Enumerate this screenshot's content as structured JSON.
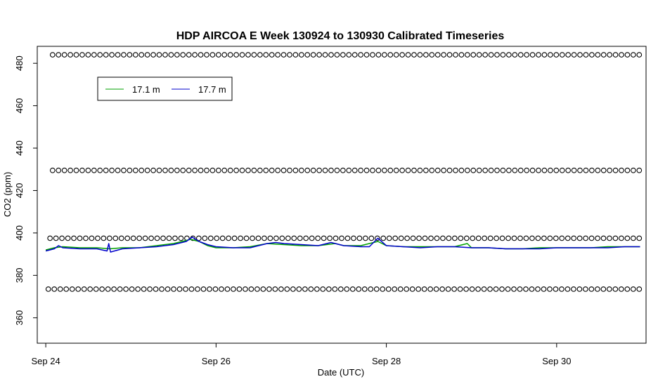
{
  "chart_data": {
    "type": "line",
    "title": "HDP AIRCOA E  Week 130924 to 130930  Calibrated Timeseries",
    "xlabel": "Date (UTC)",
    "ylabel": "CO2 (ppm)",
    "x_ticks": [
      "Sep 24",
      "Sep 26",
      "Sep 28",
      "Sep 30"
    ],
    "x_tick_values": [
      0,
      2,
      4,
      6
    ],
    "xlim": [
      -0.1,
      7.05
    ],
    "y_ticks": [
      "360",
      "380",
      "400",
      "420",
      "440",
      "460",
      "480"
    ],
    "y_tick_values": [
      360,
      380,
      400,
      420,
      440,
      460,
      480
    ],
    "ylim": [
      348,
      488
    ],
    "grid": false,
    "legend_position": "top-left",
    "colors": {
      "series_17_1": "#00a000",
      "series_17_7": "#0000cc",
      "points": "#000000"
    },
    "series": [
      {
        "name": "17.1 m",
        "x": [
          0.0,
          0.1,
          0.2,
          0.4,
          0.6,
          0.75,
          0.9,
          1.1,
          1.3,
          1.5,
          1.7,
          1.8,
          1.9,
          2.0,
          2.2,
          2.4,
          2.6,
          2.8,
          3.0,
          3.2,
          3.4,
          3.5,
          3.7,
          3.9,
          4.0,
          4.2,
          4.4,
          4.6,
          4.8,
          4.95,
          5.0,
          5.2,
          5.4,
          5.6,
          5.8,
          6.0,
          6.2,
          6.4,
          6.6,
          6.8,
          6.98
        ],
        "y": [
          392,
          393,
          393.5,
          393,
          393,
          392.5,
          393,
          393,
          394,
          395,
          397,
          396,
          394,
          393,
          393,
          393.5,
          395,
          394.5,
          394,
          394,
          395,
          394,
          394,
          396,
          394,
          393.5,
          393.5,
          393.5,
          393.5,
          395,
          393,
          393,
          392.5,
          392.5,
          393,
          393,
          393,
          393,
          393.5,
          393.5,
          393.5
        ]
      },
      {
        "name": "17.7 m",
        "x": [
          0.0,
          0.1,
          0.15,
          0.2,
          0.4,
          0.6,
          0.72,
          0.74,
          0.76,
          0.9,
          1.1,
          1.3,
          1.5,
          1.65,
          1.72,
          1.8,
          1.9,
          2.0,
          2.2,
          2.4,
          2.5,
          2.6,
          2.7,
          2.8,
          3.0,
          3.2,
          3.35,
          3.5,
          3.7,
          3.8,
          3.9,
          4.0,
          4.2,
          4.4,
          4.6,
          4.8,
          5.0,
          5.2,
          5.4,
          5.6,
          5.8,
          6.0,
          6.2,
          6.4,
          6.6,
          6.8,
          6.98
        ],
        "y": [
          391.5,
          392.5,
          394,
          393,
          392.5,
          392.5,
          391.5,
          395,
          391,
          392.5,
          393,
          393.5,
          394.5,
          396,
          398,
          396,
          394.5,
          393.5,
          393,
          393,
          394,
          395,
          395.5,
          395,
          394.5,
          394,
          395.5,
          394,
          393.5,
          393.5,
          397.5,
          394,
          393.5,
          393,
          393.5,
          393.5,
          393,
          393,
          392.5,
          392.5,
          392.5,
          393,
          393,
          393,
          393,
          393.5,
          393.5
        ]
      },
      {
        "name": "",
        "x_start": 0.08,
        "x_end": 6.97,
        "count": 100,
        "y": 484
      },
      {
        "name": "",
        "x_start": 0.08,
        "x_end": 6.97,
        "count": 100,
        "y": 429.5
      },
      {
        "name": "",
        "x_start": 0.05,
        "x_end": 6.97,
        "count": 100,
        "y": 397.5
      },
      {
        "name": "",
        "x_start": 0.03,
        "x_end": 6.97,
        "count": 100,
        "y": 373.5
      }
    ]
  }
}
